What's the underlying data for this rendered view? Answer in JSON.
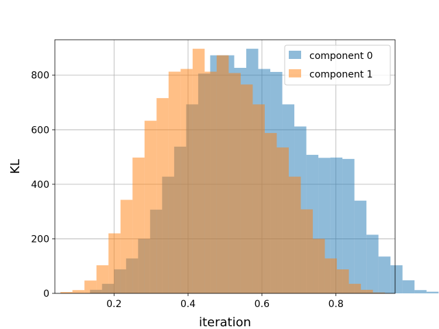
{
  "chart_data": {
    "type": "bar",
    "subtype": "overlapping-histogram",
    "xlabel": "iteration",
    "ylabel": "KL",
    "xlim": [
      0.04,
      0.96
    ],
    "ylim": [
      0,
      930
    ],
    "xticks": [
      0.2,
      0.4,
      0.6,
      0.8
    ],
    "xtick_labels": [
      "0.2",
      "0.4",
      "0.6",
      "0.8"
    ],
    "yticks": [
      0,
      200,
      400,
      600,
      800
    ],
    "ytick_labels": [
      "0",
      "200",
      "400",
      "600",
      "800"
    ],
    "grid": true,
    "legend_position": "upper right",
    "series": [
      {
        "name": "component 0",
        "color": "#1f77b4",
        "opacity": 0.5,
        "bin_width": 0.0325,
        "bin_start": 0.135,
        "values": [
          13,
          35,
          88,
          128,
          200,
          307,
          428,
          538,
          693,
          806,
          873,
          873,
          827,
          897,
          823,
          812,
          693,
          612,
          508,
          497,
          498,
          493,
          340,
          215,
          135,
          103,
          48,
          12,
          6
        ]
      },
      {
        "name": "component 1",
        "color": "#ff7f0e",
        "opacity": 0.5,
        "bin_width": 0.0325,
        "bin_start": 0.055,
        "values": [
          5,
          12,
          47,
          103,
          220,
          343,
          498,
          633,
          716,
          813,
          823,
          897,
          813,
          873,
          808,
          766,
          693,
          588,
          535,
          428,
          308,
          200,
          128,
          88,
          35,
          13,
          3
        ]
      }
    ]
  },
  "legend": {
    "items": [
      {
        "label": "component 0",
        "color": "#1f77b4"
      },
      {
        "label": "component 1",
        "color": "#ff7f0e"
      }
    ]
  }
}
